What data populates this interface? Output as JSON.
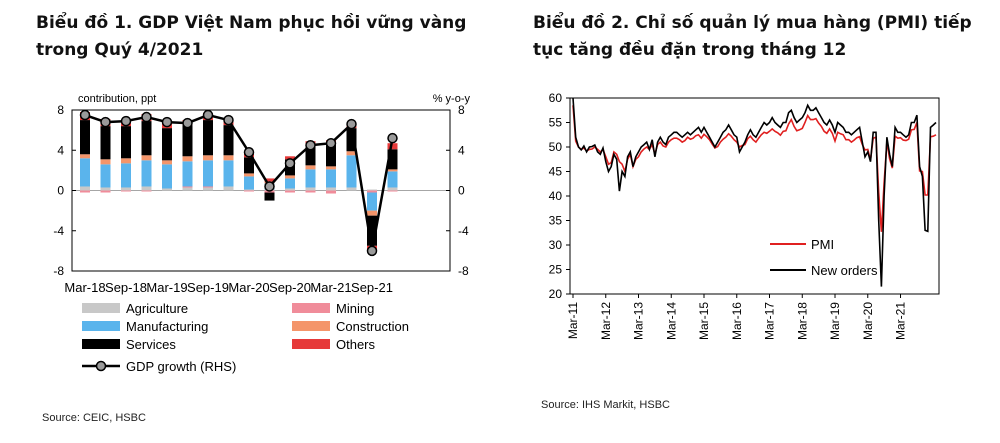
{
  "chart1": {
    "title": "Biểu đồ 1. GDP Việt Nam phục hồi vững vàng trong Quý 4/2021",
    "source": "Source: CEIC, HSBC",
    "left_axis_label": "contribution,  ppt",
    "right_axis_label": "% y-o-y",
    "colors": {
      "agriculture": "#c8c8c8",
      "mining": "#f08c9a",
      "manufacturing": "#5ab4ec",
      "construction": "#f4956a",
      "services": "#000000",
      "others": "#e63a3a",
      "gdp": "#000000"
    },
    "legend": [
      "Agriculture",
      "Mining",
      "Manufacturing",
      "Construction",
      "Services",
      "Others",
      "GDP growth (RHS)"
    ]
  },
  "chart2": {
    "title": "Biểu đồ 2. Chỉ số quản lý mua hàng (PMI) tiếp tục tăng đều đặn trong tháng 12",
    "source": "Source: IHS Markit, HSBC",
    "legend": [
      "PMI",
      "New orders"
    ],
    "colors": {
      "pmi": "#e02020",
      "new_orders": "#000000"
    }
  },
  "chart_data": [
    {
      "type": "bar",
      "title": "Biểu đồ 1. GDP Việt Nam phục hồi vững vàng trong Quý 4/2021",
      "ylim_left": [
        -8,
        8
      ],
      "ylim_right": [
        -8,
        8
      ],
      "y_ticks": [
        "-8",
        "-4",
        "0",
        "4",
        "8"
      ],
      "x_tick_labels": [
        "Mar-18",
        "Sep-18",
        "Mar-19",
        "Sep-19",
        "Mar-20",
        "Sep-20",
        "Mar-21",
        "Sep-21"
      ],
      "categories": [
        "Q1-18",
        "Q2-18",
        "Q3-18",
        "Q4-18",
        "Q1-19",
        "Q2-19",
        "Q3-19",
        "Q4-19",
        "Q1-20",
        "Q2-20",
        "Q3-20",
        "Q4-20",
        "Q1-21",
        "Q2-21",
        "Q3-21",
        "Q4-21"
      ],
      "series": [
        {
          "name": "Agriculture",
          "values": [
            0.4,
            0.3,
            0.3,
            0.4,
            0.2,
            0.3,
            0.3,
            0.4,
            0.1,
            0.1,
            0.2,
            0.3,
            0.3,
            0.3,
            0.1,
            0.3
          ]
        },
        {
          "name": "Mining",
          "values": [
            -0.2,
            -0.2,
            -0.1,
            -0.1,
            0.0,
            0.1,
            0.1,
            0.0,
            -0.1,
            -0.2,
            -0.2,
            -0.2,
            -0.3,
            0.0,
            -0.2,
            -0.1
          ]
        },
        {
          "name": "Manufacturing",
          "values": [
            2.8,
            2.3,
            2.4,
            2.6,
            2.4,
            2.5,
            2.6,
            2.6,
            1.3,
            0.6,
            1.0,
            1.8,
            1.8,
            3.2,
            -1.8,
            1.6
          ]
        },
        {
          "name": "Construction",
          "values": [
            0.4,
            0.5,
            0.5,
            0.5,
            0.4,
            0.5,
            0.5,
            0.5,
            0.3,
            0.2,
            0.3,
            0.4,
            0.3,
            0.4,
            -0.5,
            0.2
          ]
        },
        {
          "name": "Services",
          "values": [
            3.4,
            3.3,
            3.2,
            3.4,
            3.2,
            3.1,
            3.5,
            3.0,
            1.6,
            -0.8,
            1.6,
            2.1,
            2.2,
            2.3,
            -3.0,
            2.0
          ]
        },
        {
          "name": "Others",
          "values": [
            0.8,
            0.7,
            0.6,
            0.7,
            0.6,
            0.5,
            0.7,
            0.5,
            0.4,
            0.3,
            0.3,
            0.3,
            0.4,
            0.4,
            -0.6,
            0.6
          ]
        },
        {
          "name": "GDP growth (RHS)",
          "values": [
            7.5,
            6.8,
            6.9,
            7.3,
            6.8,
            6.7,
            7.5,
            7.0,
            3.8,
            0.4,
            2.7,
            4.5,
            4.7,
            6.6,
            -6.0,
            5.2
          ]
        }
      ],
      "legend_placement": "bottom"
    },
    {
      "type": "line",
      "title": "Biểu đồ 2. Chỉ số quản lý mua hàng (PMI) tiếp tục tăng đều đặn trong tháng 12",
      "ylim": [
        20,
        60
      ],
      "y_ticks": [
        "20",
        "25",
        "30",
        "35",
        "40",
        "45",
        "50",
        "55",
        "60"
      ],
      "x_tick_labels": [
        "Mar-11",
        "Mar-12",
        "Mar-13",
        "Mar-14",
        "Mar-15",
        "Mar-16",
        "Mar-17",
        "Mar-18",
        "Mar-19",
        "Mar-20",
        "Mar-21"
      ],
      "x_start": "2011-03",
      "x_end": "2021-12",
      "series": [
        {
          "name": "PMI",
          "values": [
            58.5,
            51.2,
            50.0,
            49.5,
            49.8,
            49.2,
            49.5,
            49.6,
            50.0,
            49.5,
            49.0,
            49.5,
            48.0,
            46.5,
            46.8,
            49.0,
            48.5,
            47.0,
            46.5,
            45.0,
            47.5,
            48.5,
            46.0,
            47.5,
            48.0,
            49.0,
            49.6,
            50.0,
            49.5,
            50.5,
            48.5,
            50.5,
            51.0,
            50.2,
            50.0,
            51.0,
            51.5,
            51.8,
            51.8,
            51.5,
            51.0,
            51.3,
            52.0,
            51.6,
            51.8,
            52.3,
            52.5,
            51.8,
            52.6,
            52.1,
            51.5,
            50.6,
            49.8,
            50.1,
            51.0,
            51.6,
            52.0,
            52.7,
            52.2,
            51.5,
            51.0,
            50.0,
            50.3,
            50.5,
            51.7,
            52.2,
            51.5,
            51.0,
            51.8,
            52.5,
            53.0,
            52.8,
            53.2,
            53.7,
            53.2,
            52.9,
            52.4,
            53.2,
            53.3,
            54.7,
            55.6,
            54.2,
            53.3,
            53.5,
            53.8,
            55.0,
            56.4,
            55.6,
            55.6,
            55.8,
            54.9,
            54.2,
            53.2,
            52.8,
            53.7,
            52.8,
            51.2,
            53.0,
            52.7,
            52.5,
            51.5,
            51.5,
            51.0,
            51.4,
            51.9,
            52.1,
            50.5,
            49.4,
            49.5,
            47.3,
            51.8,
            52.0,
            40.8,
            32.7,
            42.7,
            51.1,
            47.6,
            45.7,
            52.2,
            51.8,
            51.9,
            51.4,
            51.3,
            51.6,
            53.5,
            53.6,
            55.0,
            45.1,
            45.0,
            40.2,
            40.2,
            52.1,
            52.2,
            52.5
          ]
        },
        {
          "name": "New orders",
          "values": [
            60.0,
            52.0,
            50.0,
            49.4,
            50.2,
            49.0,
            50.0,
            50.1,
            50.4,
            49.0,
            48.5,
            49.8,
            47.0,
            45.0,
            46.0,
            48.5,
            47.5,
            41.0,
            45.0,
            44.0,
            48.0,
            49.0,
            46.0,
            48.0,
            49.0,
            50.0,
            50.5,
            51.0,
            49.5,
            51.5,
            48.0,
            51.0,
            52.0,
            51.0,
            50.5,
            52.0,
            52.5,
            53.0,
            53.0,
            52.5,
            52.0,
            52.5,
            53.0,
            52.5,
            53.0,
            53.5,
            54.0,
            53.0,
            54.0,
            53.0,
            52.0,
            51.0,
            50.0,
            51.0,
            52.0,
            53.0,
            53.5,
            54.5,
            53.5,
            52.5,
            52.0,
            49.0,
            50.0,
            51.0,
            52.5,
            53.5,
            52.5,
            52.0,
            53.0,
            54.0,
            55.0,
            54.5,
            55.0,
            56.0,
            55.0,
            54.5,
            54.0,
            55.0,
            55.0,
            57.0,
            57.5,
            56.0,
            55.0,
            55.5,
            56.0,
            57.0,
            58.5,
            57.5,
            57.5,
            58.0,
            57.0,
            56.0,
            55.0,
            54.5,
            55.5,
            54.5,
            53.0,
            55.0,
            54.5,
            54.0,
            53.0,
            53.0,
            52.5,
            53.0,
            53.5,
            54.0,
            51.0,
            48.0,
            49.0,
            47.0,
            53.0,
            53.0,
            35.0,
            21.5,
            40.0,
            52.0,
            48.5,
            46.0,
            54.0,
            53.0,
            53.0,
            52.5,
            52.0,
            52.5,
            55.0,
            55.0,
            56.5,
            46.0,
            44.0,
            33.0,
            32.8,
            54.0,
            54.5,
            55.0
          ]
        }
      ],
      "legend_placement": "bottom-left"
    }
  ]
}
